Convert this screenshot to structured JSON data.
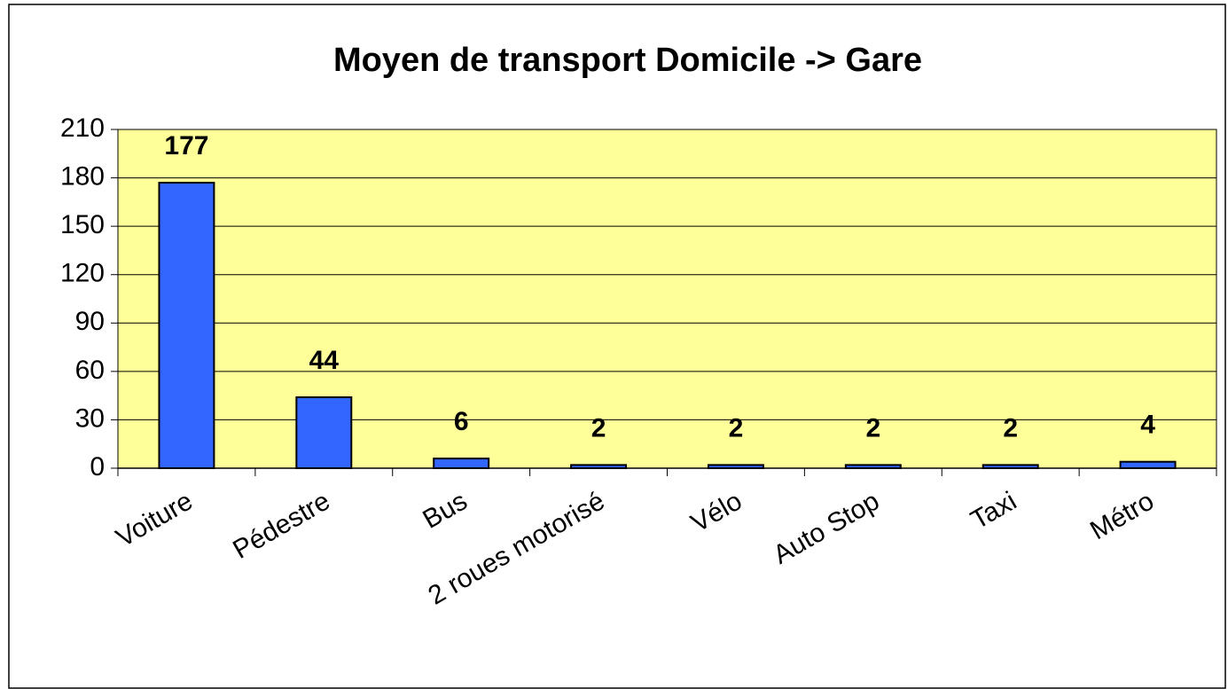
{
  "chart_data": {
    "type": "bar",
    "title": "Moyen de transport Domicile -> Gare",
    "categories": [
      "Voiture",
      "Pédestre",
      "Bus",
      "2 roues motorisé",
      "Vélo",
      "Auto Stop",
      "Taxi",
      "Métro"
    ],
    "values": [
      177,
      44,
      6,
      2,
      2,
      2,
      2,
      4
    ],
    "color": "#3366ff",
    "ylim": [
      0,
      210
    ],
    "yticks": [
      0,
      30,
      60,
      90,
      120,
      150,
      180,
      210
    ],
    "grid": true,
    "plot_background": "#ffff99"
  }
}
